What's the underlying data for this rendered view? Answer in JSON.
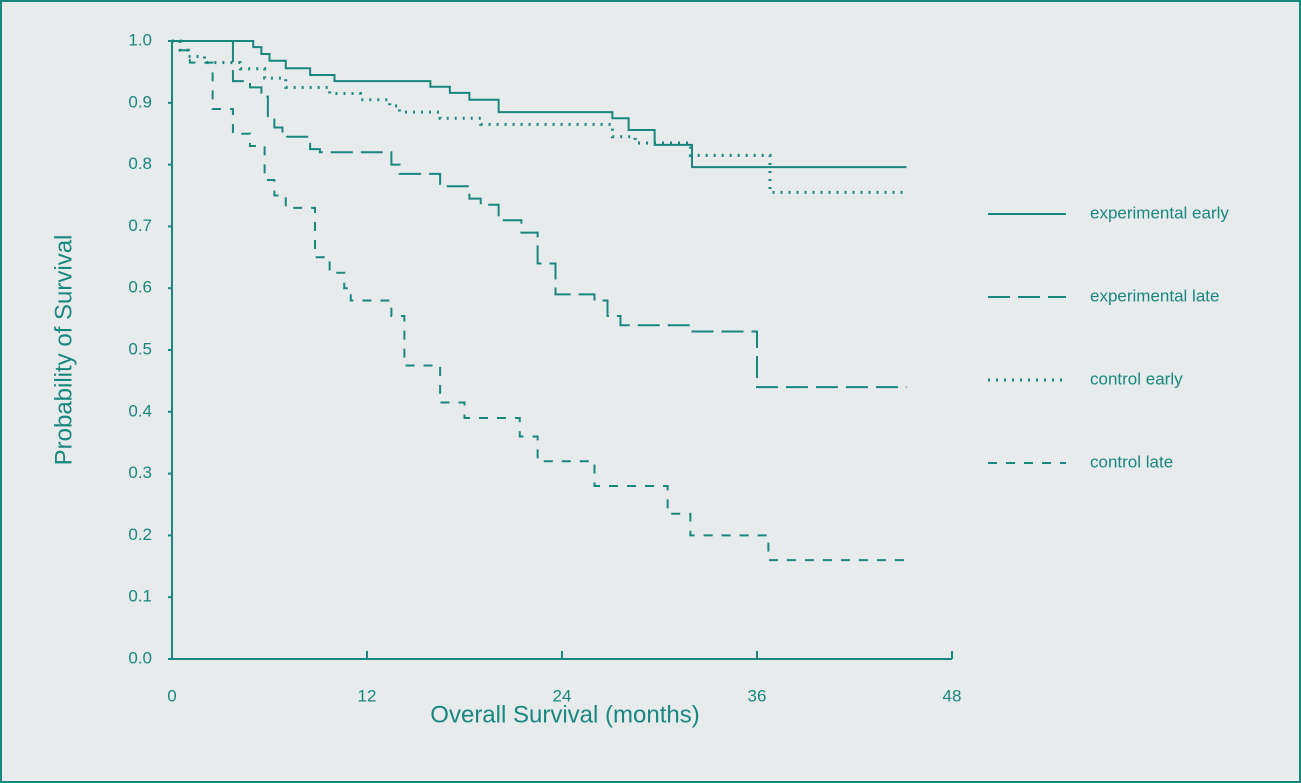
{
  "chart_data": {
    "type": "line",
    "drawstyle": "steps-post",
    "ylabel": "Probability of Survival",
    "xlabel": "Overall Survival (months)",
    "xlim": [
      0,
      48
    ],
    "xticks": [
      0,
      12,
      24,
      36,
      48
    ],
    "ylim": [
      0,
      1
    ],
    "yticks": [
      {
        "value": 0,
        "label": "0.0"
      },
      0.1,
      0.2,
      0.3,
      0.4,
      0.5,
      0.6,
      0.7,
      0.8,
      0.9,
      {
        "value": 1,
        "label": "1.0"
      }
    ],
    "legend": "right",
    "series": [
      {
        "name": "experimental early",
        "color": "#18877e",
        "dash": "solid",
        "x": [
          0,
          5,
          5.5,
          6,
          7,
          8.5,
          10,
          15.9,
          17.1,
          18.3,
          20.1,
          27.1,
          28.1,
          29.7,
          32,
          45.2
        ],
        "values": [
          1,
          0.99,
          0.979,
          0.968,
          0.956,
          0.945,
          0.935,
          0.926,
          0.916,
          0.905,
          0.885,
          0.875,
          0.856,
          0.832,
          0.796,
          0.796
        ]
      },
      {
        "name": "experimental late",
        "color": "#18877e",
        "dash": "long",
        "x": [
          0,
          3.75,
          4.8,
          5.5,
          5.9,
          6.3,
          6.8,
          8.5,
          9.1,
          13.5,
          14,
          16.5,
          18.3,
          19,
          20.1,
          21.5,
          22.5,
          23.6,
          26,
          26.8,
          27.6,
          31.9,
          36,
          45.2
        ],
        "values": [
          1,
          0.935,
          0.925,
          0.91,
          0.875,
          0.86,
          0.845,
          0.825,
          0.82,
          0.8,
          0.785,
          0.765,
          0.745,
          0.735,
          0.71,
          0.69,
          0.64,
          0.59,
          0.58,
          0.555,
          0.54,
          0.53,
          0.44,
          0.44
        ]
      },
      {
        "name": "control early",
        "color": "#18877e",
        "dash": "dotted",
        "x": [
          0,
          0.5,
          1,
          2,
          4.2,
          5.7,
          7,
          9.7,
          11.6,
          13.4,
          14,
          16.5,
          19,
          27.1,
          28.5,
          31.9,
          36.8,
          45.2
        ],
        "values": [
          1,
          0.985,
          0.975,
          0.965,
          0.955,
          0.94,
          0.925,
          0.915,
          0.905,
          0.895,
          0.885,
          0.875,
          0.865,
          0.845,
          0.835,
          0.815,
          0.755,
          0.755
        ]
      },
      {
        "name": "control late",
        "color": "#18877e",
        "dash": "short",
        "x": [
          0,
          0.5,
          1.1,
          2.5,
          3.75,
          4.8,
          5.7,
          6.3,
          7,
          8.8,
          9.7,
          10.6,
          11,
          13.5,
          14.3,
          16.5,
          18,
          21.4,
          22.5,
          26,
          30.5,
          31.9,
          36.7,
          45.2
        ],
        "values": [
          1,
          0.985,
          0.965,
          0.89,
          0.85,
          0.83,
          0.775,
          0.75,
          0.73,
          0.65,
          0.625,
          0.6,
          0.58,
          0.555,
          0.475,
          0.415,
          0.39,
          0.36,
          0.32,
          0.28,
          0.235,
          0.2,
          0.16,
          0.16
        ]
      }
    ]
  }
}
